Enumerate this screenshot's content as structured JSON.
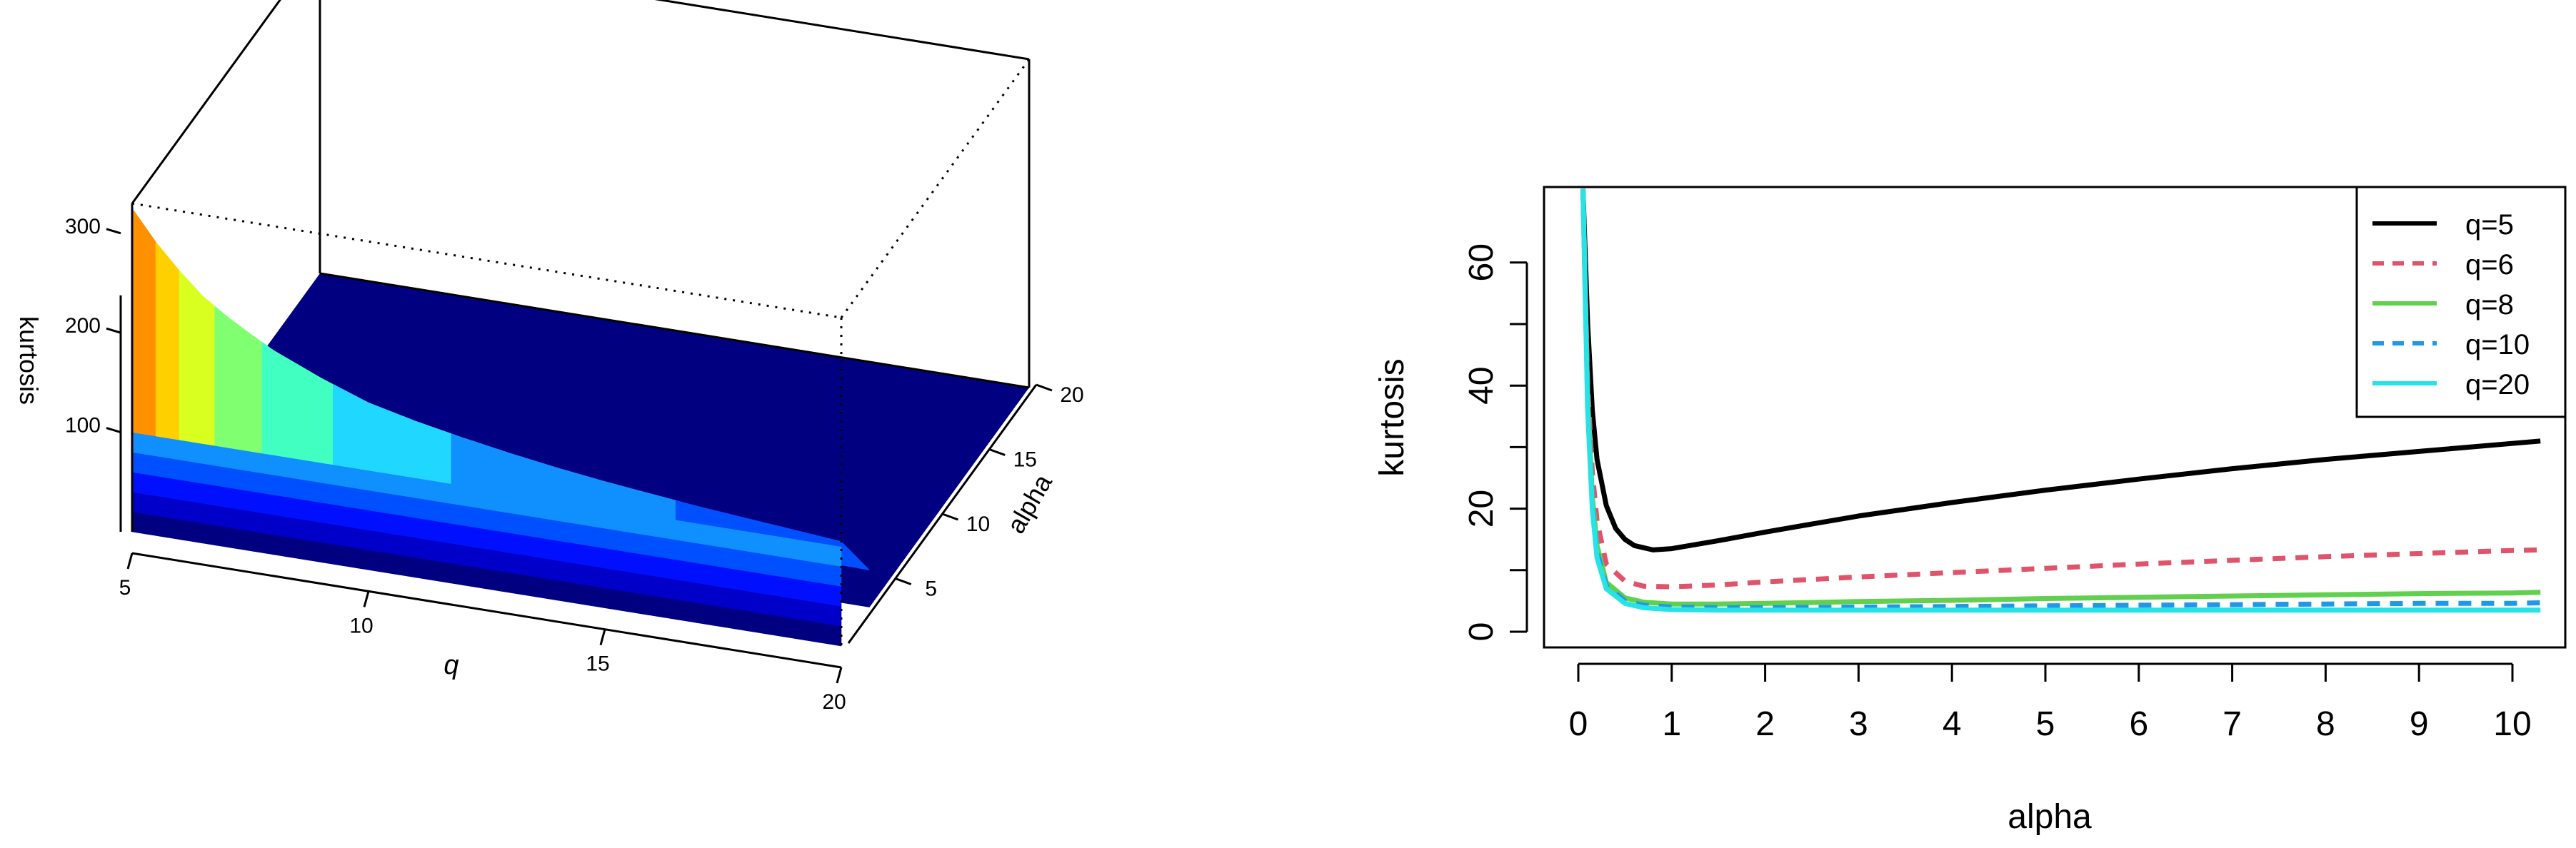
{
  "chart_data": [
    {
      "type": "surface",
      "title": "",
      "xlabel": "q",
      "ylabel": "alpha",
      "zlabel": "kurtosis",
      "x_ticks": [
        "5",
        "10",
        "15",
        "20"
      ],
      "y_ticks": [
        "5",
        "10",
        "15",
        "20"
      ],
      "z_ticks": [
        "100",
        "200",
        "300"
      ],
      "xlim": [
        5,
        20
      ],
      "ylim": [
        0,
        20
      ],
      "zlim": [
        0,
        330
      ],
      "colormap": "jet",
      "colors": {
        "floor": "#000080",
        "palette": [
          "#000080",
          "#0000c8",
          "#0010ff",
          "#0050ff",
          "#1090ff",
          "#20d8ff",
          "#40ffc0",
          "#80ff70",
          "#d8ff20",
          "#ffd000",
          "#ff9000"
        ]
      },
      "front_edge_alpha_0": {
        "x": [
          5,
          5.5,
          6,
          6.5,
          7,
          7.5,
          8,
          9,
          10,
          11,
          12,
          13,
          14,
          15,
          16,
          17,
          18,
          19,
          20
        ],
        "z": [
          325,
          295,
          270,
          248,
          232,
          218,
          205,
          185,
          168,
          157,
          148,
          140,
          133,
          127,
          122,
          117,
          113,
          109,
          105
        ]
      }
    },
    {
      "type": "line",
      "title": "",
      "xlabel": "alpha",
      "ylabel": "kurtosis",
      "x_ticks": [
        "0",
        "1",
        "2",
        "3",
        "4",
        "5",
        "6",
        "7",
        "8",
        "9",
        "10"
      ],
      "y_ticks": [
        "0",
        "20",
        "40",
        "60"
      ],
      "xlim": [
        0,
        10.3
      ],
      "ylim": [
        0,
        72
      ],
      "grid": false,
      "legend_position": "top-right",
      "series": [
        {
          "name": "q=5",
          "color": "#000000",
          "dash": "solid",
          "x": [
            0.05,
            0.1,
            0.15,
            0.2,
            0.3,
            0.4,
            0.5,
            0.6,
            0.8,
            1,
            1.5,
            2,
            3,
            4,
            5,
            6,
            7,
            8,
            9,
            10,
            10.3
          ],
          "y": [
            72,
            50,
            36,
            28,
            20.5,
            16.8,
            15,
            14,
            13.3,
            13.5,
            14.8,
            16.2,
            18.8,
            21,
            23,
            24.8,
            26.5,
            28,
            29.3,
            30.6,
            31
          ]
        },
        {
          "name": "q=6",
          "color": "#df536b",
          "dash": "dashed",
          "x": [
            0.05,
            0.1,
            0.15,
            0.2,
            0.3,
            0.5,
            0.7,
            1,
            1.5,
            2,
            3,
            4,
            5,
            6,
            7,
            8,
            9,
            10,
            10.3
          ],
          "y": [
            72,
            40,
            26,
            18,
            11,
            8.2,
            7.4,
            7.3,
            7.6,
            8.1,
            8.9,
            9.6,
            10.3,
            11,
            11.6,
            12.2,
            12.7,
            13.2,
            13.3
          ]
        },
        {
          "name": "q=8",
          "color": "#61d04f",
          "dash": "solid",
          "x": [
            0.05,
            0.1,
            0.15,
            0.2,
            0.3,
            0.5,
            0.7,
            1,
            1.5,
            2,
            3,
            4,
            5,
            6,
            7,
            8,
            9,
            10,
            10.3
          ],
          "y": [
            72,
            38,
            22,
            14,
            8,
            5.5,
            4.8,
            4.5,
            4.5,
            4.6,
            4.9,
            5.1,
            5.4,
            5.6,
            5.8,
            6,
            6.2,
            6.3,
            6.4
          ]
        },
        {
          "name": "q=10",
          "color": "#2297e6",
          "dash": "dashed",
          "x": [
            0.05,
            0.1,
            0.15,
            0.2,
            0.3,
            0.5,
            0.7,
            1,
            1.5,
            2,
            3,
            4,
            5,
            6,
            7,
            8,
            9,
            10,
            10.3
          ],
          "y": [
            72,
            37,
            21,
            13,
            7.5,
            5,
            4.3,
            4,
            3.9,
            3.9,
            4,
            4.1,
            4.2,
            4.3,
            4.4,
            4.5,
            4.6,
            4.6,
            4.7
          ]
        },
        {
          "name": "q=20",
          "color": "#28e2e5",
          "dash": "solid",
          "x": [
            0.05,
            0.1,
            0.15,
            0.2,
            0.3,
            0.5,
            0.7,
            1,
            1.5,
            2,
            3,
            4,
            5,
            6,
            7,
            8,
            9,
            10,
            10.3
          ],
          "y": [
            72,
            36,
            20,
            12,
            7,
            4.6,
            3.9,
            3.6,
            3.5,
            3.5,
            3.5,
            3.5,
            3.5,
            3.5,
            3.5,
            3.5,
            3.5,
            3.5,
            3.5
          ]
        }
      ]
    }
  ]
}
